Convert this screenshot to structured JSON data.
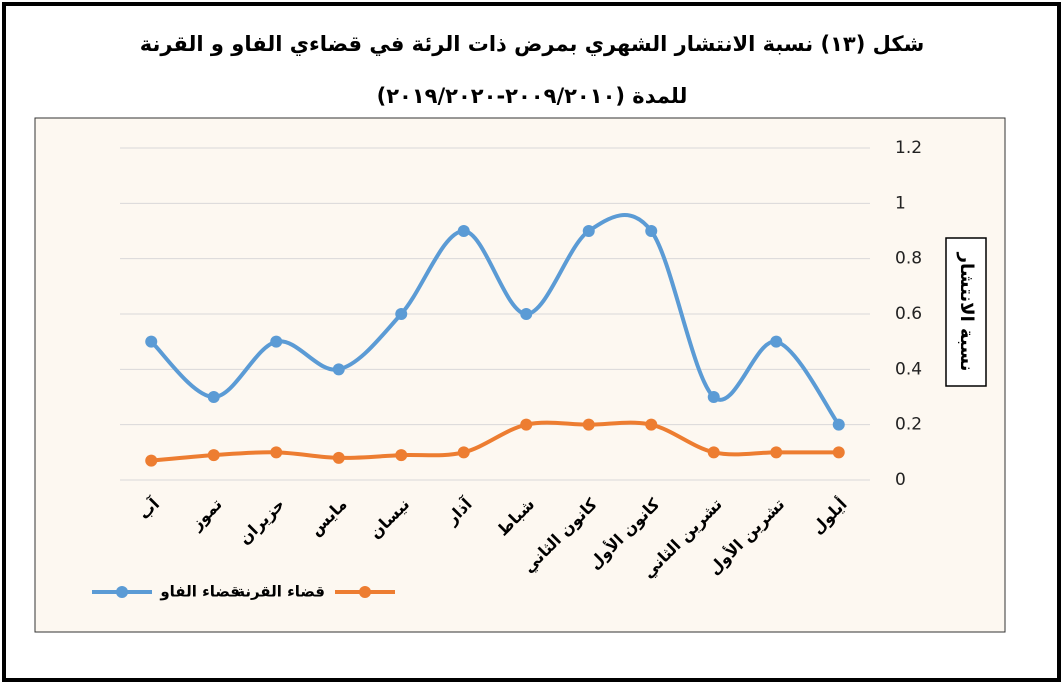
{
  "chart_data": {
    "type": "line",
    "title": [
      "شكل (١٣) نسبة الانتشار الشهري بمرض ذات الرئة في قضاءي الفاو و القرنة",
      "للمدة (٢٠٠٩/٢٠١٠-٢٠١٩/٢٠٢٠)"
    ],
    "y_label": "نسبة الانتشار",
    "categories": [
      "آب",
      "تموز",
      "حزيران",
      "مايس",
      "نيسان",
      "آذار",
      "شباط",
      "كانون الثاني",
      "كانون الأول",
      "تشرين الثاني",
      "تشرين الأول",
      "أيلول"
    ],
    "series": [
      {
        "name": "قضاء الفاو",
        "color": "#5b9bd5",
        "values": [
          0.5,
          0.3,
          0.5,
          0.4,
          0.6,
          0.9,
          0.6,
          0.9,
          0.9,
          0.3,
          0.5,
          0.2
        ]
      },
      {
        "name": "قضاء القرنة",
        "color": "#ed7d31",
        "values": [
          0.07,
          0.09,
          0.1,
          0.08,
          0.09,
          0.1,
          0.2,
          0.2,
          0.2,
          0.1,
          0.1,
          0.1
        ]
      }
    ],
    "ylim": [
      0,
      1.2
    ],
    "yticks": [
      0,
      0.2,
      0.4,
      0.6,
      0.8,
      1,
      1.2
    ],
    "grid": true,
    "y_axis_side": "right",
    "smooth": true
  }
}
